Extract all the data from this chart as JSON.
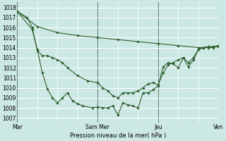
{
  "xlabel": "Pression niveau de la mer( hPa )",
  "bg_color": "#cce8e4",
  "grid_color_minor": "#c0dedd",
  "grid_color_major": "#aad0cc",
  "line_color": "#2d5e2d",
  "marker_color": "#2d5e2d",
  "vline_color": "#5a7a6a",
  "ylim": [
    1006.5,
    1018.5
  ],
  "yticks": [
    1007,
    1008,
    1009,
    1010,
    1011,
    1012,
    1013,
    1014,
    1015,
    1016,
    1017,
    1018
  ],
  "xlim": [
    0,
    240
  ],
  "day_positions": [
    0,
    96,
    168,
    240
  ],
  "day_labels": [
    "Mar",
    "Sam Mer",
    "Jeu",
    "Ven"
  ],
  "line1_x": [
    0,
    24,
    48,
    72,
    96,
    120,
    144,
    168,
    192,
    216,
    240
  ],
  "line1_y": [
    1017.6,
    1016.1,
    1015.5,
    1015.2,
    1015.0,
    1014.8,
    1014.6,
    1014.4,
    1014.2,
    1014.0,
    1014.1
  ],
  "line2_x": [
    0,
    12,
    18,
    24,
    30,
    36,
    42,
    48,
    54,
    60,
    72,
    84,
    96,
    102,
    108,
    114,
    120,
    126,
    132,
    138,
    144,
    150,
    156,
    162,
    168,
    174,
    180,
    186,
    192,
    198,
    204,
    210,
    216,
    222,
    228,
    234,
    240
  ],
  "line2_y": [
    1017.6,
    1017.0,
    1016.0,
    1013.7,
    1013.2,
    1013.2,
    1013.0,
    1012.8,
    1012.5,
    1012.0,
    1011.2,
    1010.7,
    1010.5,
    1010.0,
    1009.7,
    1009.2,
    1009.0,
    1009.5,
    1009.5,
    1009.5,
    1009.7,
    1010.0,
    1010.4,
    1010.5,
    1010.3,
    1011.5,
    1012.3,
    1012.5,
    1012.8,
    1013.0,
    1012.5,
    1013.0,
    1013.8,
    1014.0,
    1014.1,
    1014.1,
    1014.2
  ],
  "line3_x": [
    0,
    18,
    24,
    30,
    36,
    42,
    48,
    54,
    60,
    66,
    72,
    78,
    90,
    96,
    102,
    108,
    114,
    120,
    126,
    132,
    138,
    144,
    150,
    156,
    162,
    168,
    174,
    180,
    186,
    192,
    198,
    204,
    210,
    216,
    222,
    228,
    234,
    240
  ],
  "line3_y": [
    1017.6,
    1015.8,
    1013.8,
    1011.5,
    1009.9,
    1009.0,
    1008.5,
    1009.0,
    1009.5,
    1008.7,
    1008.4,
    1008.2,
    1008.0,
    1008.1,
    1008.0,
    1008.0,
    1008.2,
    1007.3,
    1008.5,
    1008.3,
    1008.2,
    1008.0,
    1009.5,
    1009.5,
    1009.8,
    1010.2,
    1012.1,
    1012.5,
    1012.4,
    1012.0,
    1013.0,
    1012.1,
    1012.8,
    1013.8,
    1014.0,
    1014.0,
    1014.0,
    1014.2
  ]
}
